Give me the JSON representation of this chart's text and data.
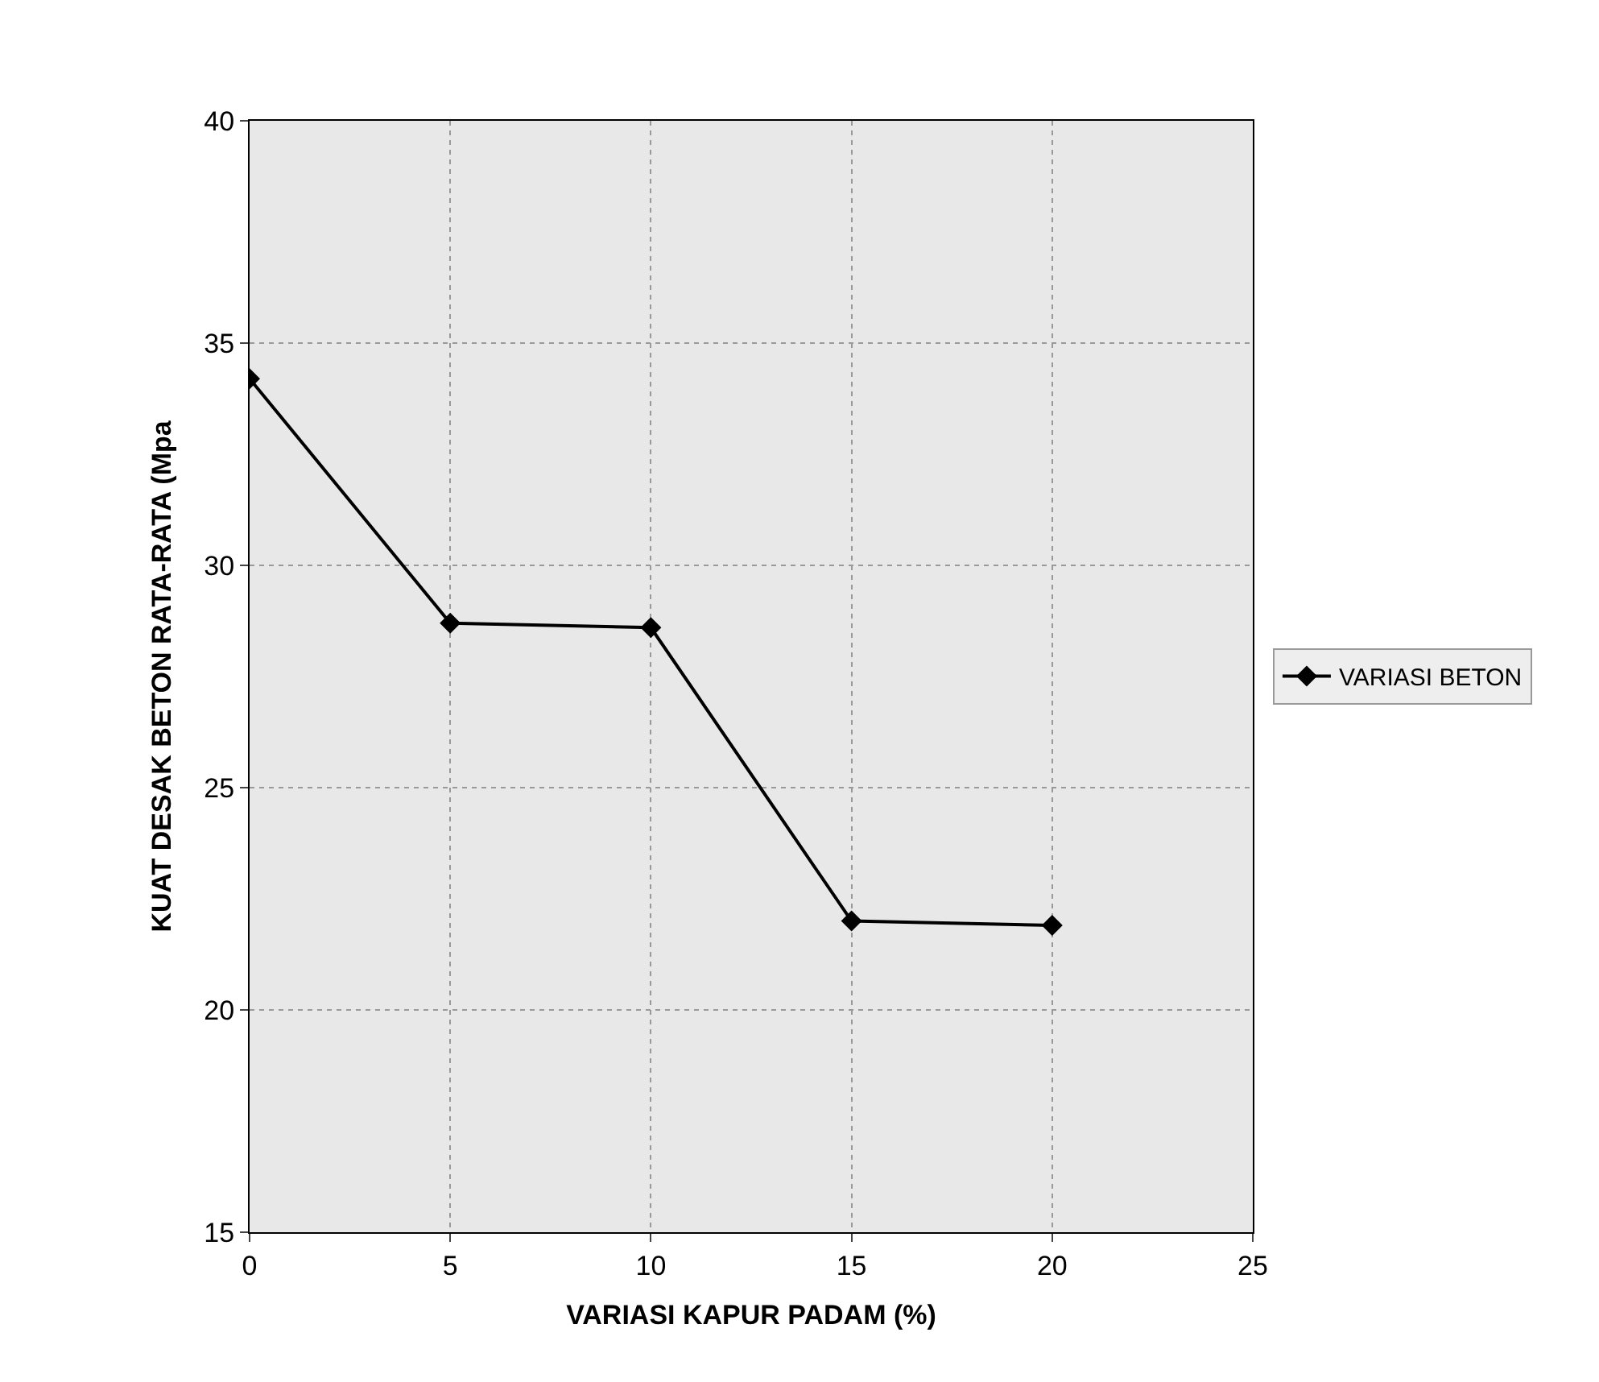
{
  "chart_data": {
    "type": "line",
    "xlabel": "VARIASI KAPUR PADAM (%)",
    "ylabel": "KUAT DESAK BETON RATA-RATA (Mpa",
    "x": [
      0,
      5,
      10,
      15,
      20
    ],
    "series": [
      {
        "name": "VARIASI BETON",
        "color": "#000000",
        "values": [
          34.2,
          28.7,
          28.6,
          22.0,
          21.9
        ]
      }
    ],
    "xlim": [
      0,
      25
    ],
    "xticks": [
      0,
      5,
      10,
      15,
      20,
      25
    ],
    "ylim": [
      15,
      40
    ],
    "yticks": [
      15,
      20,
      25,
      30,
      35,
      40
    ],
    "grid": true,
    "legend": "right",
    "marker": "diamond",
    "line_style": "solid"
  }
}
